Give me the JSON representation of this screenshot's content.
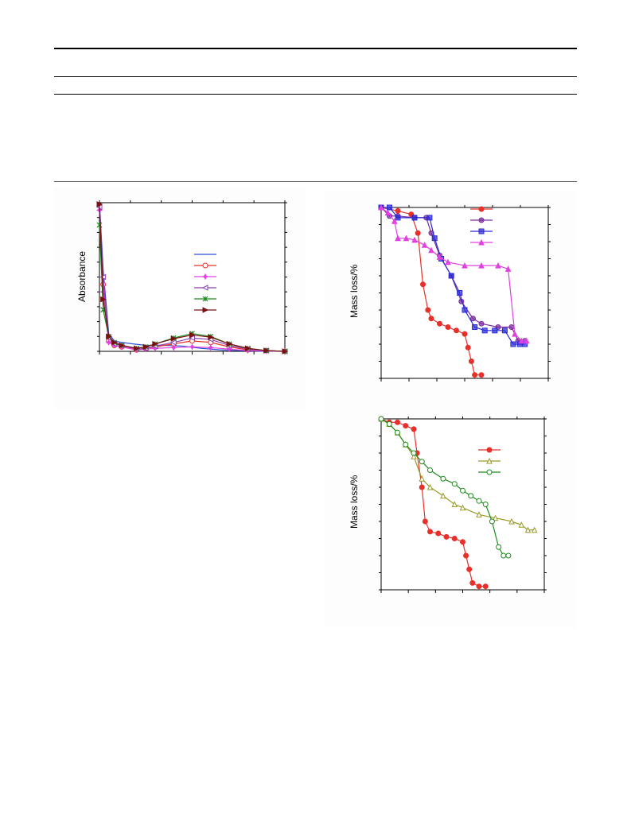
{
  "figures": {
    "uv": {
      "ylabel": "Absorbance",
      "chart_data": {
        "type": "line",
        "title": "",
        "xlabel": "",
        "ylabel": "Absorbance",
        "legend_position": "right-center",
        "grid": false,
        "series": [
          {
            "name": "",
            "color": "#2d4fd6",
            "marker": "line",
            "x": [
              0,
              0.02,
              0.05,
              0.08,
              0.12,
              0.18,
              0.25,
              0.35,
              0.45,
              0.55,
              0.65,
              0.75,
              0.85,
              1.0
            ],
            "y": [
              1.0,
              0.55,
              0.12,
              0.07,
              0.06,
              0.05,
              0.04,
              0.04,
              0.035,
              0.02,
              0.01,
              0.005,
              0.002,
              0.0
            ]
          },
          {
            "name": "",
            "color": "#e8302a",
            "marker": "circle-open",
            "x": [
              0,
              0.02,
              0.05,
              0.08,
              0.12,
              0.2,
              0.25,
              0.3,
              0.4,
              0.5,
              0.6,
              0.7,
              0.8,
              0.9,
              1.0
            ],
            "y": [
              0.98,
              0.45,
              0.07,
              0.04,
              0.03,
              0.01,
              0.02,
              0.03,
              0.05,
              0.07,
              0.06,
              0.03,
              0.01,
              0.005,
              0.0
            ]
          },
          {
            "name": "",
            "color": "#e040e0",
            "marker": "star",
            "x": [
              0,
              0.02,
              0.05,
              0.08,
              0.12,
              0.2,
              0.25,
              0.3,
              0.4,
              0.5,
              0.6,
              0.7,
              0.8,
              0.9,
              1.0
            ],
            "y": [
              0.95,
              0.4,
              0.06,
              0.04,
              0.03,
              0.01,
              0.015,
              0.02,
              0.025,
              0.03,
              0.025,
              0.015,
              0.005,
              0.002,
              0.0
            ]
          },
          {
            "name": "",
            "color": "#8a3fb0",
            "marker": "triangle-left",
            "x": [
              0,
              0.02,
              0.05,
              0.08,
              0.12,
              0.2,
              0.25,
              0.3,
              0.4,
              0.5,
              0.6,
              0.7,
              0.8,
              0.9,
              1.0
            ],
            "y": [
              0.97,
              0.5,
              0.09,
              0.05,
              0.04,
              0.015,
              0.02,
              0.035,
              0.06,
              0.09,
              0.08,
              0.04,
              0.015,
              0.005,
              0.0
            ]
          },
          {
            "name": "",
            "color": "#1e8a1e",
            "marker": "x-star",
            "x": [
              0,
              0.02,
              0.05,
              0.08,
              0.12,
              0.2,
              0.25,
              0.3,
              0.4,
              0.5,
              0.6,
              0.7,
              0.8,
              0.9,
              1.0
            ],
            "y": [
              0.85,
              0.28,
              0.1,
              0.06,
              0.04,
              0.02,
              0.03,
              0.05,
              0.09,
              0.12,
              0.1,
              0.05,
              0.02,
              0.005,
              0.0
            ]
          },
          {
            "name": "",
            "color": "#7a1010",
            "marker": "triangle-right",
            "x": [
              0,
              0.02,
              0.05,
              0.08,
              0.12,
              0.2,
              0.25,
              0.3,
              0.4,
              0.5,
              0.6,
              0.7,
              0.8,
              0.9,
              1.0
            ],
            "y": [
              0.99,
              0.35,
              0.1,
              0.06,
              0.04,
              0.02,
              0.03,
              0.05,
              0.085,
              0.11,
              0.095,
              0.05,
              0.02,
              0.005,
              0.0
            ]
          }
        ]
      }
    },
    "tga1": {
      "ylabel": "Mass loss/%",
      "chart_data": {
        "type": "line",
        "title": "",
        "xlabel": "",
        "ylabel": "Mass loss/%",
        "legend_position": "top-right",
        "grid": false,
        "series": [
          {
            "name": "",
            "color": "#e8302a",
            "marker": "circle-filled",
            "x": [
              0,
              0.1,
              0.18,
              0.22,
              0.25,
              0.28,
              0.3,
              0.35,
              0.4,
              0.45,
              0.5,
              0.52,
              0.54,
              0.56,
              0.6
            ],
            "y": [
              0.0,
              0.02,
              0.04,
              0.15,
              0.45,
              0.6,
              0.65,
              0.68,
              0.7,
              0.72,
              0.74,
              0.82,
              0.9,
              0.98,
              0.98
            ]
          },
          {
            "name": "",
            "color": "#7a2a9a",
            "marker": "circle-half",
            "x": [
              0,
              0.05,
              0.1,
              0.2,
              0.27,
              0.3,
              0.35,
              0.42,
              0.48,
              0.55,
              0.6,
              0.7,
              0.78,
              0.82,
              0.86
            ],
            "y": [
              0.0,
              0.05,
              0.05,
              0.06,
              0.06,
              0.15,
              0.28,
              0.4,
              0.55,
              0.65,
              0.68,
              0.7,
              0.7,
              0.78,
              0.78
            ]
          },
          {
            "name": "",
            "color": "#2a2ad6",
            "marker": "square-half",
            "x": [
              0,
              0.05,
              0.1,
              0.2,
              0.29,
              0.32,
              0.36,
              0.42,
              0.47,
              0.5,
              0.56,
              0.62,
              0.68,
              0.74,
              0.79,
              0.83,
              0.86
            ],
            "y": [
              0.0,
              0.0,
              0.06,
              0.06,
              0.06,
              0.18,
              0.3,
              0.4,
              0.5,
              0.6,
              0.7,
              0.72,
              0.72,
              0.72,
              0.8,
              0.8,
              0.8
            ]
          },
          {
            "name": "",
            "color": "#e040e0",
            "marker": "triangle-up",
            "x": [
              0,
              0.04,
              0.08,
              0.1,
              0.15,
              0.2,
              0.26,
              0.3,
              0.35,
              0.4,
              0.5,
              0.6,
              0.7,
              0.76,
              0.8,
              0.84,
              0.87
            ],
            "y": [
              0.0,
              0.03,
              0.08,
              0.18,
              0.18,
              0.19,
              0.22,
              0.25,
              0.29,
              0.32,
              0.34,
              0.34,
              0.34,
              0.36,
              0.74,
              0.78,
              0.78
            ]
          }
        ]
      }
    },
    "tga2": {
      "ylabel": "Mass loss/%",
      "chart_data": {
        "type": "line",
        "title": "",
        "xlabel": "",
        "ylabel": "Mass loss/%",
        "legend_position": "top-right",
        "grid": false,
        "series": [
          {
            "name": "",
            "color": "#e8302a",
            "marker": "circle-filled",
            "x": [
              0,
              0.05,
              0.1,
              0.15,
              0.2,
              0.22,
              0.25,
              0.27,
              0.3,
              0.35,
              0.4,
              0.45,
              0.5,
              0.52,
              0.54,
              0.56,
              0.6,
              0.64
            ],
            "y": [
              0.0,
              0.02,
              0.02,
              0.04,
              0.06,
              0.2,
              0.4,
              0.6,
              0.66,
              0.67,
              0.69,
              0.7,
              0.72,
              0.8,
              0.88,
              0.96,
              0.98,
              0.98
            ]
          },
          {
            "name": "",
            "color": "#9a9a2a",
            "marker": "triangle-open",
            "x": [
              0,
              0.05,
              0.1,
              0.15,
              0.2,
              0.25,
              0.3,
              0.38,
              0.45,
              0.5,
              0.6,
              0.7,
              0.8,
              0.86,
              0.9,
              0.94
            ],
            "y": [
              0.0,
              0.03,
              0.08,
              0.15,
              0.22,
              0.35,
              0.4,
              0.45,
              0.5,
              0.52,
              0.56,
              0.58,
              0.6,
              0.62,
              0.65,
              0.65
            ]
          },
          {
            "name": "",
            "color": "#1e8a1e",
            "marker": "circle-open",
            "x": [
              0,
              0.05,
              0.1,
              0.15,
              0.2,
              0.25,
              0.3,
              0.38,
              0.45,
              0.5,
              0.55,
              0.6,
              0.64,
              0.68,
              0.72,
              0.75,
              0.78
            ],
            "y": [
              0.0,
              0.03,
              0.08,
              0.15,
              0.2,
              0.25,
              0.3,
              0.35,
              0.38,
              0.42,
              0.45,
              0.48,
              0.5,
              0.6,
              0.75,
              0.8,
              0.8
            ]
          }
        ]
      }
    }
  }
}
